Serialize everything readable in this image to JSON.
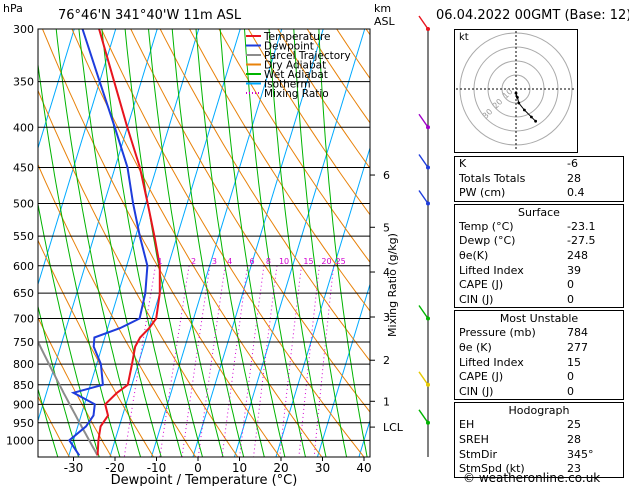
{
  "header": {
    "left_unit": "hPa",
    "location": "76°46'N  341°40'W  11m  ASL",
    "km_label": "km",
    "asl_label": "ASL",
    "datetime": "06.04.2022  00GMT  (Base: 12)"
  },
  "legend": [
    {
      "label": "Temperature",
      "color": "#e8141e"
    },
    {
      "label": "Dewpoint",
      "color": "#1e3cdc"
    },
    {
      "label": "Parcel Trajectory",
      "color": "#8c8c8c"
    },
    {
      "label": "Dry Adiabat",
      "color": "#e8820a"
    },
    {
      "label": "Wet Adiabat",
      "color": "#00b400"
    },
    {
      "label": "Isotherm",
      "color": "#00aaff"
    },
    {
      "label": "Mixing Ratio",
      "color": "#d200d2"
    }
  ],
  "right_axis_label": "Mixing Ratio (g/kg)",
  "km_ticks": [
    {
      "label": "6",
      "p": 460
    },
    {
      "label": "5",
      "p": 536
    },
    {
      "label": "4",
      "p": 611
    },
    {
      "label": "3",
      "p": 697
    },
    {
      "label": "2",
      "p": 791
    },
    {
      "label": "1",
      "p": 892
    },
    {
      "label": "LCL",
      "p": 962
    }
  ],
  "mixing_ratio_labels": [
    "1",
    "2",
    "3",
    "4",
    "6",
    "8",
    "10",
    "15",
    "20",
    "25"
  ],
  "chart_data": {
    "type": "line",
    "xlabel": "Dewpoint / Temperature (°C)",
    "ylabel": "hPa",
    "xlim": [
      -40,
      40
    ],
    "x_ticks": [
      -30,
      -20,
      -10,
      0,
      10,
      20,
      30,
      40
    ],
    "y_ticks": [
      300,
      350,
      400,
      450,
      500,
      550,
      600,
      650,
      700,
      750,
      800,
      850,
      900,
      950,
      1000
    ],
    "pressure_range": [
      300,
      1050
    ],
    "skew": true,
    "series": [
      {
        "name": "Temperature",
        "color": "#e8141e",
        "p": [
          1045,
          1000,
          960,
          930,
          900,
          870,
          850,
          800,
          760,
          740,
          720,
          700,
          650,
          600,
          550,
          500,
          450,
          400,
          350,
          300
        ],
        "t": [
          -23.1,
          -24,
          -24.5,
          -23.5,
          -25,
          -23,
          -21,
          -21.5,
          -22,
          -21.5,
          -20,
          -19,
          -20,
          -22,
          -25.5,
          -29.5,
          -34,
          -40,
          -46.5,
          -54
        ]
      },
      {
        "name": "Dewpoint",
        "color": "#1e3cdc",
        "p": [
          1045,
          1000,
          960,
          930,
          900,
          870,
          850,
          800,
          760,
          740,
          720,
          700,
          650,
          600,
          550,
          500,
          450,
          400,
          350,
          300
        ],
        "t": [
          -27.5,
          -31,
          -28,
          -27,
          -27.5,
          -33.5,
          -27,
          -29,
          -32,
          -32.5,
          -27,
          -23,
          -23.5,
          -25,
          -29,
          -33,
          -37,
          -43,
          -50,
          -58
        ]
      }
    ],
    "hodograph": {
      "label": "kt",
      "rings_kt": [
        10,
        20,
        30,
        40
      ],
      "ring_labels": [
        "10",
        "20",
        "30"
      ],
      "trace": [
        [
          0,
          -3
        ],
        [
          1,
          -6
        ],
        [
          2,
          -10
        ],
        [
          6,
          -15
        ],
        [
          11,
          -20
        ],
        [
          14,
          -23
        ]
      ]
    },
    "wind_barb_pressures": [
      300,
      400,
      450,
      500,
      700,
      850,
      950
    ]
  },
  "panel": {
    "sections": [
      {
        "rows": [
          {
            "label": "K",
            "value": "-6"
          },
          {
            "label": "Totals Totals",
            "value": "28"
          },
          {
            "label": "PW (cm)",
            "value": "0.4"
          }
        ]
      },
      {
        "title": "Surface",
        "rows": [
          {
            "label": "Temp (°C)",
            "value": "-23.1"
          },
          {
            "label": "Dewp (°C)",
            "value": "-27.5"
          },
          {
            "label": "θe(K)",
            "value": "248"
          },
          {
            "label": "Lifted Index",
            "value": "39"
          },
          {
            "label": "CAPE (J)",
            "value": "0"
          },
          {
            "label": "CIN (J)",
            "value": "0"
          }
        ]
      },
      {
        "title": "Most Unstable",
        "rows": [
          {
            "label": "Pressure (mb)",
            "value": "784"
          },
          {
            "label": "θe (K)",
            "value": "277"
          },
          {
            "label": "Lifted Index",
            "value": "15"
          },
          {
            "label": "CAPE (J)",
            "value": "0"
          },
          {
            "label": "CIN (J)",
            "value": "0"
          }
        ]
      },
      {
        "title": "Hodograph",
        "rows": [
          {
            "label": "EH",
            "value": "25"
          },
          {
            "label": "SREH",
            "value": "28"
          },
          {
            "label": "StmDir",
            "value": "345°"
          },
          {
            "label": "StmSpd (kt)",
            "value": "23"
          }
        ]
      }
    ]
  },
  "footer": "© weatheronline.co.uk"
}
